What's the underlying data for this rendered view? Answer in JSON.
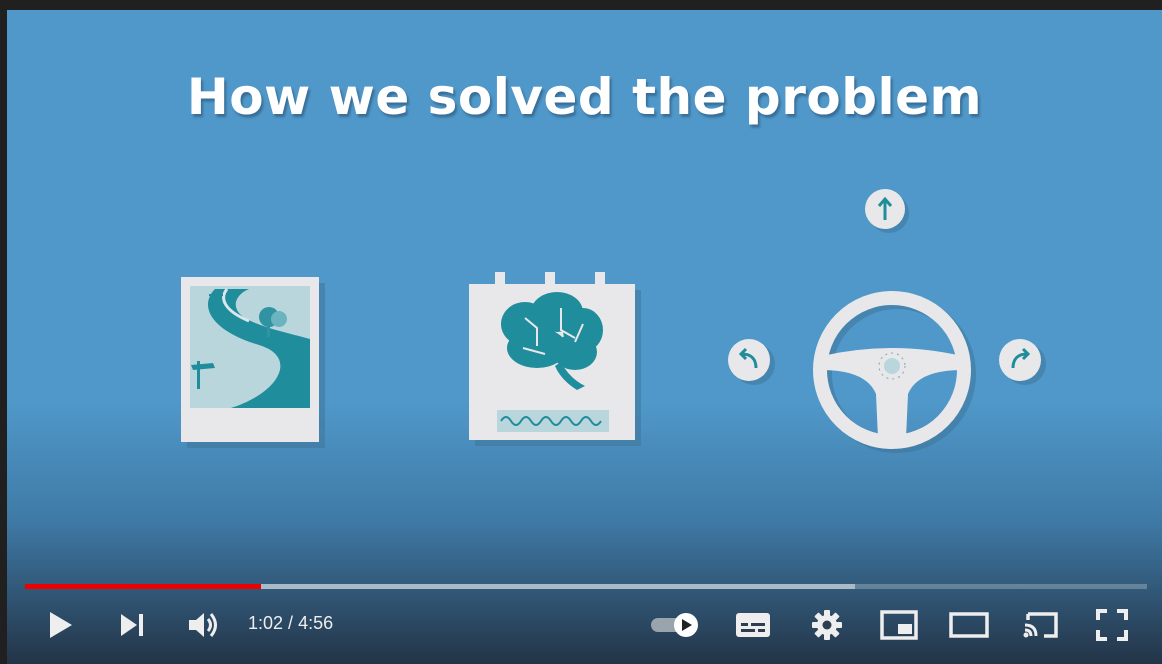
{
  "video": {
    "slide_title": "How we solved the problem",
    "illustrations": [
      "road-photo-icon",
      "brain-chip-icon",
      "steering-wheel-icon"
    ]
  },
  "player": {
    "progress": {
      "played_fraction": 0.21,
      "buffered_fraction": 0.74
    },
    "time": {
      "current": "1:02",
      "separator": " / ",
      "duration": "4:56"
    },
    "controls": {
      "play": "play-icon",
      "next": "next-icon",
      "volume": "volume-icon",
      "autoplay": "autoplay-toggle",
      "subtitles": "subtitles-icon",
      "settings": "gear-icon",
      "miniplayer": "miniplayer-icon",
      "theater": "theater-icon",
      "cast": "cast-icon",
      "fullscreen": "fullscreen-icon"
    },
    "colors": {
      "played": "#ee0000",
      "accent": "#0e8a99",
      "background": "#4f98c9"
    }
  }
}
